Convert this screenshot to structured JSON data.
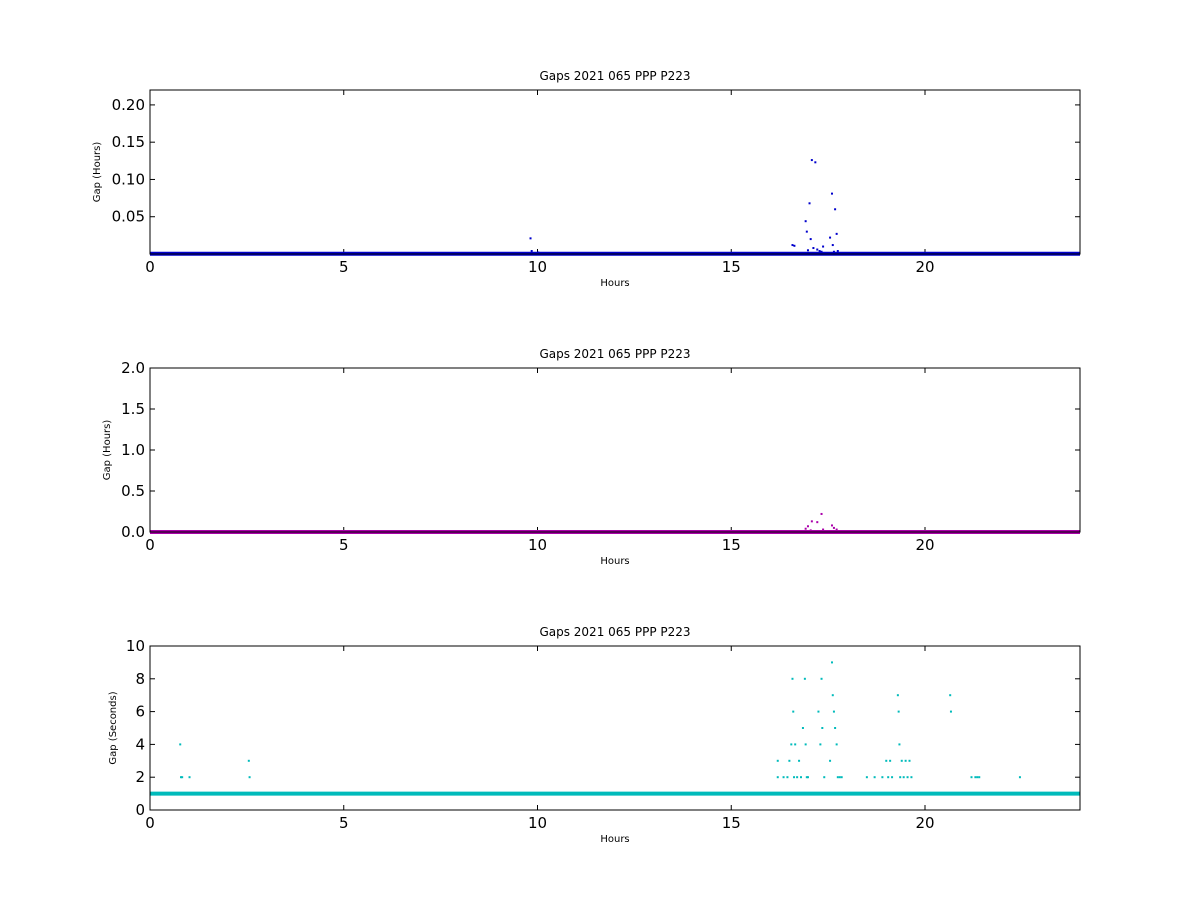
{
  "charts": [
    {
      "title": "Gaps 2021 065 PPP  P223",
      "xlabel": "Hours",
      "ylabel": "Gap (Hours)"
    },
    {
      "title": "Gaps 2021 065 PPP  P223",
      "xlabel": "Hours",
      "ylabel": "Gap (Hours)"
    },
    {
      "title": "Gaps 2021 065 PPP  P223",
      "xlabel": "Hours",
      "ylabel": "Gap (Seconds)"
    }
  ],
  "chart_data": [
    {
      "type": "scatter",
      "title": "Gaps 2021 065 PPP  P223",
      "xlabel": "Hours",
      "ylabel": "Gap (Hours)",
      "xlim": [
        0,
        24
      ],
      "ylim": [
        0,
        0.22
      ],
      "xticks": [
        0,
        5,
        10,
        15,
        20
      ],
      "yticks": [
        0.05,
        0.1,
        0.15,
        0.2
      ],
      "ytick_labels": [
        "0.05",
        "0.10",
        "0.15",
        "0.20"
      ],
      "color": "#0000cc",
      "grid": false,
      "baseline": {
        "y": 0.000278,
        "x_range": [
          0,
          24
        ]
      },
      "series": [
        {
          "x": [
            9.82,
            9.85,
            10.02,
            16.58,
            16.63,
            16.92,
            16.95,
            16.98,
            17.02,
            17.05,
            17.08,
            17.12,
            17.17,
            17.22,
            17.28,
            17.33,
            17.37,
            17.55,
            17.6,
            17.62,
            17.65,
            17.68,
            17.72,
            17.75
          ],
          "y": [
            0.021,
            0.004,
            0.002,
            0.012,
            0.011,
            0.044,
            0.03,
            0.005,
            0.068,
            0.02,
            0.126,
            0.008,
            0.123,
            0.006,
            0.004,
            0.003,
            0.01,
            0.022,
            0.081,
            0.012,
            0.003,
            0.06,
            0.027,
            0.004
          ]
        }
      ]
    },
    {
      "type": "scatter",
      "title": "Gaps 2021 065 PPP  P223",
      "xlabel": "Hours",
      "ylabel": "Gap (Hours)",
      "xlim": [
        0,
        24
      ],
      "ylim": [
        0,
        2.0
      ],
      "xticks": [
        0,
        5,
        10,
        15,
        20
      ],
      "yticks": [
        0.0,
        0.5,
        1.0,
        1.5,
        2.0
      ],
      "ytick_labels": [
        "0.0",
        "0.5",
        "1.0",
        "1.5",
        "2.0"
      ],
      "color": "#aa00aa",
      "grid": false,
      "baseline": {
        "y": 0.000278,
        "x_range": [
          0,
          24
        ]
      },
      "series": [
        {
          "x": [
            16.92,
            16.98,
            17.05,
            17.08,
            17.22,
            17.33,
            17.37,
            17.6,
            17.65,
            17.72
          ],
          "y": [
            0.04,
            0.07,
            0.02,
            0.13,
            0.12,
            0.22,
            0.03,
            0.08,
            0.05,
            0.03
          ]
        }
      ]
    },
    {
      "type": "scatter",
      "title": "Gaps 2021 065 PPP  P223",
      "xlabel": "Hours",
      "ylabel": "Gap (Seconds)",
      "xlim": [
        0,
        24
      ],
      "ylim": [
        0,
        10
      ],
      "xticks": [
        0,
        5,
        10,
        15,
        20
      ],
      "yticks": [
        0,
        2,
        4,
        6,
        8,
        10
      ],
      "ytick_labels": [
        "0",
        "2",
        "4",
        "6",
        "8",
        "10"
      ],
      "color": "#00bbbb",
      "grid": false,
      "baseline": {
        "y": 1,
        "x_range": [
          0,
          24
        ]
      },
      "series": [
        {
          "x": [
            0.78,
            0.8,
            0.83,
            1.02,
            2.55,
            2.57,
            16.2,
            16.2,
            16.35,
            16.45,
            16.5,
            16.55,
            16.58,
            16.6,
            16.62,
            16.65,
            16.7,
            16.75,
            16.8,
            16.85,
            16.9,
            16.92,
            16.95,
            16.98,
            17.25,
            17.3,
            17.33,
            17.35,
            17.4,
            17.55,
            17.6,
            17.62,
            17.65,
            17.68,
            17.72,
            17.75,
            17.8,
            17.85,
            18.5,
            18.7,
            18.9,
            19.0,
            19.05,
            19.1,
            19.15,
            19.3,
            19.32,
            19.34,
            19.36,
            19.4,
            19.45,
            19.5,
            19.55,
            19.6,
            19.65,
            20.65,
            20.67,
            21.2,
            21.3,
            21.35,
            21.4,
            22.45
          ],
          "y": [
            4,
            2,
            2,
            2,
            3,
            2,
            2,
            3,
            2,
            2,
            3,
            4,
            8,
            6,
            2,
            4,
            2,
            3,
            2,
            5,
            8,
            4,
            2,
            2,
            6,
            4,
            8,
            5,
            2,
            3,
            9,
            7,
            6,
            5,
            4,
            2,
            2,
            2,
            2,
            2,
            2,
            3,
            2,
            3,
            2,
            7,
            6,
            4,
            2,
            3,
            2,
            3,
            2,
            3,
            2,
            7,
            6,
            2,
            2,
            2,
            2,
            2
          ]
        }
      ]
    }
  ]
}
